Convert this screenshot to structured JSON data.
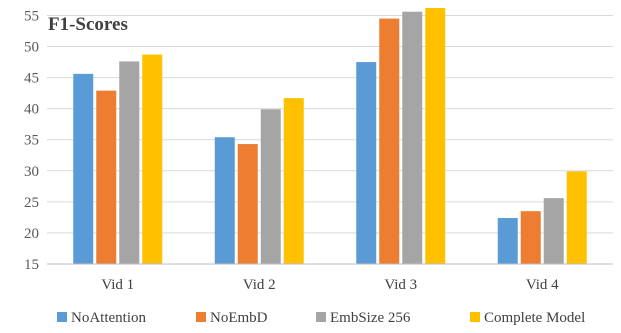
{
  "chart_data": {
    "type": "bar",
    "title": "F1-Scores",
    "xlabel": "",
    "ylabel": "",
    "categories": [
      "Vid 1",
      "Vid 2",
      "Vid 3",
      "Vid 4"
    ],
    "yticks": [
      15,
      20,
      25,
      30,
      35,
      40,
      45,
      50,
      55
    ],
    "ylim": [
      15,
      56.2
    ],
    "grid": "horizontal",
    "legend": "bottom",
    "series": [
      {
        "name": "NoAttention",
        "color": "#5b9bd5",
        "values": [
          45.6,
          35.4,
          47.5,
          22.4
        ]
      },
      {
        "name": "NoEmbD",
        "color": "#ed7d31",
        "values": [
          42.9,
          34.3,
          54.5,
          23.5
        ]
      },
      {
        "name": "EmbSize 256",
        "color": "#a5a5a5",
        "values": [
          47.6,
          39.9,
          55.6,
          25.6
        ]
      },
      {
        "name": "Complete Model",
        "color": "#ffc000",
        "values": [
          48.7,
          41.7,
          56.2,
          29.9
        ]
      }
    ]
  }
}
